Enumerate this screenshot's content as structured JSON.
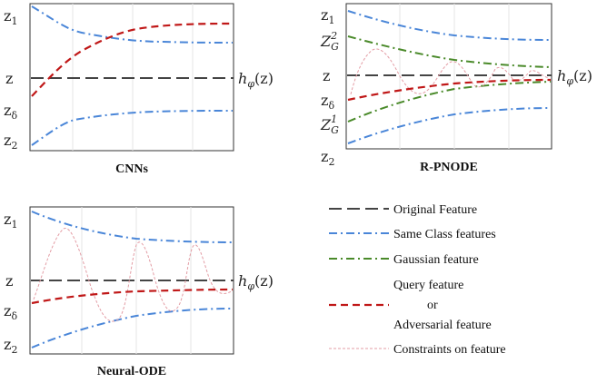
{
  "panels": {
    "cnns": {
      "caption": "CNNs",
      "axis_labels": {
        "z1": "z",
        "z1_sub": "1",
        "z": "z",
        "zd": "z",
        "zd_sub": "δ",
        "z2": "z",
        "z2_sub": "2"
      },
      "h_label": "h",
      "h_sub": "φ",
      "h_arg": "(z)"
    },
    "rpnode": {
      "caption": "R-PNODE",
      "axis_labels": {
        "z1": "z",
        "z1_sub": "1",
        "zg2": "Z",
        "zg2_sub": "G",
        "zg2_sup": "2",
        "z": "z",
        "zd": "z",
        "zd_sub": "δ",
        "zg1": "Z",
        "zg1_sub": "G",
        "zg1_sup": "1",
        "z2": "z",
        "z2_sub": "2"
      },
      "h_label": "h",
      "h_sub": "φ",
      "h_arg": "(z)"
    },
    "node": {
      "caption": "Neural-ODE",
      "axis_labels": {
        "z1": "z",
        "z1_sub": "1",
        "z": "z",
        "zd": "z",
        "zd_sub": "δ",
        "z2": "z",
        "z2_sub": "2"
      },
      "h_label": "h",
      "h_sub": "φ",
      "h_arg": "(z)"
    }
  },
  "legend": {
    "original": "Original Feature",
    "same_class": "Same Class features",
    "gaussian": "Gaussian feature",
    "query_1": "Query feature",
    "query_2": "or",
    "query_3": "Adversarial feature",
    "constraints": "Constraints on feature"
  },
  "colors": {
    "original": "#3a3a3a",
    "same_class": "#4a86d8",
    "gaussian": "#4a8a2a",
    "query": "#c01818",
    "constraints": "#e39ca4"
  }
}
